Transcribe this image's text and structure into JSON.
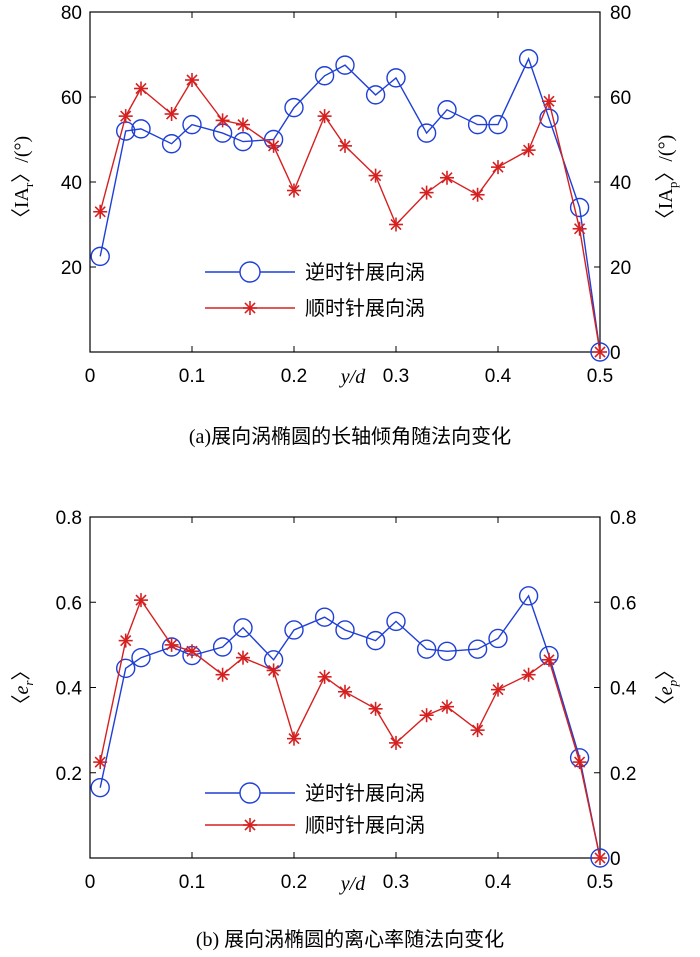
{
  "chart_data": [
    {
      "type": "line",
      "id": "a",
      "caption": "(a)展向涡椭圆的长轴倾角随法向变化",
      "xlabel": "y/d",
      "ylabel_left": {
        "open": "〈",
        "main": "IA",
        "sub": "r",
        "close": "〉/(°)"
      },
      "ylabel_right": {
        "open": "〈",
        "main": "IA",
        "sub": "p",
        "close": "〉/(°)"
      },
      "xlim": [
        0,
        0.5
      ],
      "ylim": [
        0,
        80
      ],
      "xticks": [
        0,
        0.1,
        0.2,
        0.3,
        0.4,
        0.5
      ],
      "xtick_labels": [
        "0",
        "0.1",
        "0.2",
        "0.3",
        "0.4",
        "0.5"
      ],
      "yticks": [
        0,
        20,
        40,
        60,
        80
      ],
      "ytick_labels_left": [
        "",
        "20",
        "40",
        "60",
        "80"
      ],
      "ytick_labels_right": [
        "0",
        "20",
        "40",
        "60",
        "80"
      ],
      "legend_position": "lower-center",
      "series": [
        {
          "name": "逆时针展向涡",
          "color": "#1f3fd6",
          "marker": "circle",
          "x": [
            0.01,
            0.035,
            0.05,
            0.08,
            0.1,
            0.13,
            0.15,
            0.18,
            0.2,
            0.23,
            0.25,
            0.28,
            0.3,
            0.33,
            0.35,
            0.38,
            0.4,
            0.43,
            0.45,
            0.48,
            0.5
          ],
          "y": [
            22.5,
            52,
            52.5,
            49,
            53.5,
            51.5,
            49.5,
            50,
            57.5,
            65,
            67.5,
            60.5,
            64.5,
            51.5,
            57,
            53.5,
            53.5,
            69,
            55,
            34,
            0
          ]
        },
        {
          "name": "顺时针展向涡",
          "color": "#d62020",
          "marker": "star",
          "x": [
            0.01,
            0.035,
            0.05,
            0.08,
            0.1,
            0.13,
            0.15,
            0.18,
            0.2,
            0.23,
            0.25,
            0.28,
            0.3,
            0.33,
            0.35,
            0.38,
            0.4,
            0.43,
            0.45,
            0.48,
            0.5
          ],
          "y": [
            33,
            55.5,
            62,
            56,
            64,
            54.5,
            53.5,
            48.5,
            38,
            55.5,
            48.5,
            41.5,
            30,
            37.5,
            41,
            37,
            43.5,
            47.5,
            59,
            29,
            0
          ]
        }
      ]
    },
    {
      "type": "line",
      "id": "b",
      "caption": "(b) 展向涡椭圆的离心率随法向变化",
      "xlabel": "y/d",
      "ylabel_left": {
        "open": "〈",
        "main": "e",
        "sub": "r",
        "close": "〉"
      },
      "ylabel_right": {
        "open": "〈",
        "main": "e",
        "sub": "p",
        "close": "〉"
      },
      "xlim": [
        0,
        0.5
      ],
      "ylim": [
        0,
        0.8
      ],
      "xticks": [
        0,
        0.1,
        0.2,
        0.3,
        0.4,
        0.5
      ],
      "xtick_labels": [
        "0",
        "0.1",
        "0.2",
        "0.3",
        "0.4",
        "0.5"
      ],
      "yticks": [
        0,
        0.2,
        0.4,
        0.6,
        0.8
      ],
      "ytick_labels_left": [
        "",
        "0.2",
        "0.4",
        "0.6",
        "0.8"
      ],
      "ytick_labels_right": [
        "0",
        "0.2",
        "0.4",
        "0.6",
        "0.8"
      ],
      "legend_position": "lower-center",
      "series": [
        {
          "name": "逆时针展向涡",
          "color": "#1f3fd6",
          "marker": "circle",
          "x": [
            0.01,
            0.035,
            0.05,
            0.08,
            0.1,
            0.13,
            0.15,
            0.18,
            0.2,
            0.23,
            0.25,
            0.28,
            0.3,
            0.33,
            0.35,
            0.38,
            0.4,
            0.43,
            0.45,
            0.48,
            0.5
          ],
          "y": [
            0.165,
            0.445,
            0.47,
            0.495,
            0.475,
            0.495,
            0.54,
            0.465,
            0.535,
            0.565,
            0.535,
            0.51,
            0.555,
            0.49,
            0.485,
            0.49,
            0.515,
            0.615,
            0.475,
            0.235,
            0
          ]
        },
        {
          "name": "顺时针展向涡",
          "color": "#d62020",
          "marker": "star",
          "x": [
            0.01,
            0.035,
            0.05,
            0.08,
            0.1,
            0.13,
            0.15,
            0.18,
            0.2,
            0.23,
            0.25,
            0.28,
            0.3,
            0.33,
            0.35,
            0.38,
            0.4,
            0.43,
            0.45,
            0.48,
            0.5
          ],
          "y": [
            0.225,
            0.51,
            0.605,
            0.5,
            0.485,
            0.43,
            0.47,
            0.44,
            0.28,
            0.425,
            0.39,
            0.35,
            0.27,
            0.335,
            0.355,
            0.3,
            0.395,
            0.43,
            0.465,
            0.225,
            0
          ]
        }
      ]
    }
  ]
}
